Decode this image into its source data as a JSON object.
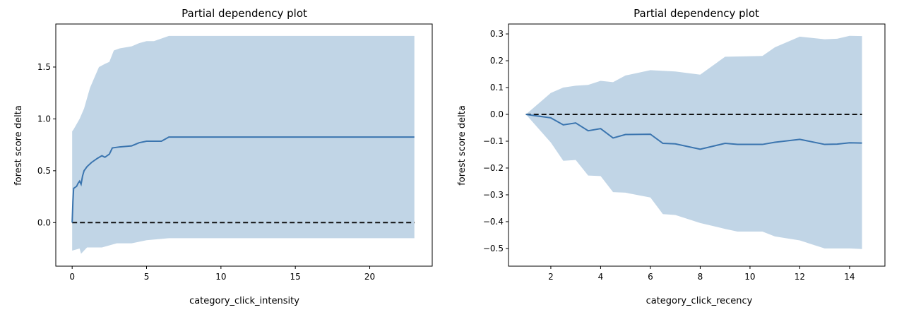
{
  "colors": {
    "band": "#c1d5e6",
    "line": "#3b75af",
    "baseline": "#111111"
  },
  "chart_data": [
    {
      "type": "line",
      "title": "Partial dependency plot",
      "xlabel": "category_click_intensity",
      "ylabel": "forest score delta",
      "xlim": [
        -1.1,
        24.2
      ],
      "ylim": [
        -0.42,
        1.915
      ],
      "xticks": [
        0,
        5,
        10,
        15,
        20
      ],
      "xtick_labels": [
        "0",
        "5",
        "10",
        "15",
        "20"
      ],
      "yticks": [
        0.0,
        0.5,
        1.0,
        1.5
      ],
      "ytick_labels": [
        "0.0",
        "0.5",
        "1.0",
        "1.5"
      ],
      "baseline": 0.0,
      "mean": {
        "x": [
          0,
          0.05,
          0.1,
          0.3,
          0.4,
          0.5,
          0.6,
          0.7,
          0.8,
          1.0,
          1.3,
          1.7,
          2.0,
          2.2,
          2.5,
          2.7,
          3.2,
          4.0,
          4.5,
          5.0,
          6.0,
          6.5,
          23
        ],
        "y": [
          0,
          0.2,
          0.33,
          0.35,
          0.38,
          0.4,
          0.37,
          0.45,
          0.5,
          0.54,
          0.58,
          0.62,
          0.645,
          0.63,
          0.66,
          0.72,
          0.73,
          0.74,
          0.77,
          0.785,
          0.785,
          0.825,
          0.825
        ]
      },
      "upper": {
        "x": [
          0,
          0.1,
          0.5,
          0.8,
          1.0,
          1.2,
          1.5,
          1.8,
          2.2,
          2.5,
          2.8,
          3.2,
          4.0,
          4.5,
          5.0,
          5.5,
          6.5,
          23
        ],
        "y": [
          0.88,
          0.9,
          1.0,
          1.1,
          1.2,
          1.3,
          1.4,
          1.5,
          1.53,
          1.55,
          1.66,
          1.68,
          1.7,
          1.73,
          1.75,
          1.75,
          1.8,
          1.8
        ]
      },
      "lower": {
        "x": [
          0,
          0.5,
          0.6,
          1.0,
          2.0,
          3.0,
          4.0,
          5.0,
          6.5,
          23
        ],
        "y": [
          -0.27,
          -0.25,
          -0.3,
          -0.24,
          -0.24,
          -0.2,
          -0.2,
          -0.17,
          -0.15,
          -0.15
        ]
      }
    },
    {
      "type": "line",
      "title": "Partial dependency plot",
      "xlabel": "category_click_recency",
      "ylabel": "forest score delta",
      "xlim": [
        0.3,
        15.42
      ],
      "ylim": [
        -0.566,
        0.337
      ],
      "xticks": [
        2,
        4,
        6,
        8,
        10,
        12,
        14
      ],
      "xtick_labels": [
        "2",
        "4",
        "6",
        "8",
        "10",
        "12",
        "14"
      ],
      "yticks": [
        0.3,
        0.2,
        0.1,
        0.0,
        -0.1,
        -0.2,
        -0.3,
        -0.4,
        -0.5
      ],
      "ytick_labels": [
        "0.3",
        "0.2",
        "0.1",
        "0.0",
        "−0.1",
        "−0.2",
        "−0.3",
        "−0.4",
        "−0.5"
      ],
      "baseline": 0.0,
      "mean": {
        "x": [
          1,
          2,
          2.5,
          3,
          3.5,
          4,
          4.5,
          5,
          6,
          6.5,
          7,
          8,
          9,
          9.5,
          10.5,
          11,
          12,
          13,
          13.5,
          14,
          14.5
        ],
        "y": [
          0,
          -0.013,
          -0.039,
          -0.032,
          -0.061,
          -0.053,
          -0.088,
          -0.075,
          -0.074,
          -0.108,
          -0.11,
          -0.13,
          -0.108,
          -0.112,
          -0.112,
          -0.104,
          -0.093,
          -0.112,
          -0.111,
          -0.106,
          -0.107
        ]
      },
      "upper": {
        "x": [
          1,
          2,
          2.5,
          3,
          3.5,
          4,
          4.5,
          5,
          6,
          7,
          8,
          9,
          10.5,
          11,
          12,
          13,
          13.5,
          14,
          14.5
        ],
        "y": [
          0,
          0.08,
          0.1,
          0.107,
          0.11,
          0.125,
          0.12,
          0.145,
          0.165,
          0.16,
          0.148,
          0.215,
          0.218,
          0.25,
          0.29,
          0.28,
          0.282,
          0.293,
          0.292
        ]
      },
      "lower": {
        "x": [
          1,
          2,
          2.5,
          3,
          3.5,
          4,
          4.5,
          5,
          6,
          6.5,
          7,
          8,
          9,
          9.5,
          10.5,
          11,
          12,
          13,
          14,
          14.5
        ],
        "y": [
          0,
          -0.105,
          -0.173,
          -0.17,
          -0.228,
          -0.23,
          -0.29,
          -0.292,
          -0.31,
          -0.372,
          -0.375,
          -0.405,
          -0.427,
          -0.437,
          -0.437,
          -0.455,
          -0.47,
          -0.5,
          -0.5,
          -0.502
        ]
      }
    }
  ]
}
